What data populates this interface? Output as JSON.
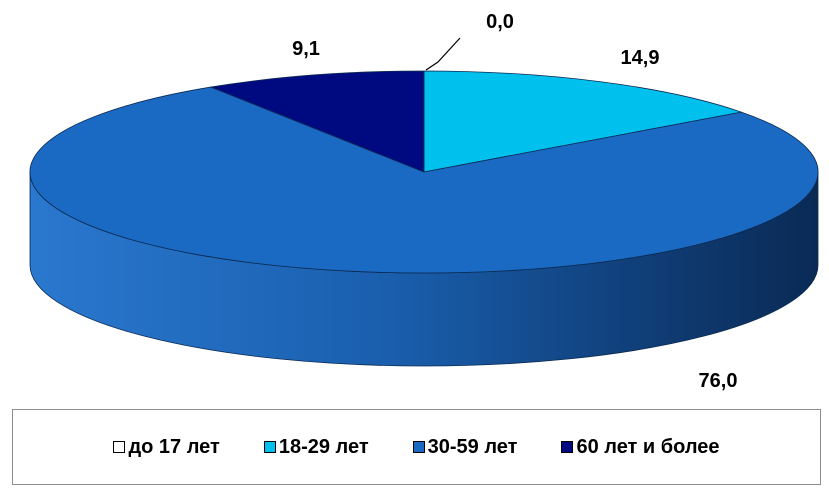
{
  "chart_data": {
    "type": "pie",
    "categories": [
      "до 17 лет",
      "18-29 лет",
      "30-59 лет",
      "60 лет и более"
    ],
    "values": [
      0.0,
      14.9,
      76.0,
      9.1
    ],
    "value_labels": [
      "0,0",
      "14,9",
      "76,0",
      "9,1"
    ],
    "colors": [
      "#ffffff",
      "#00c0ee",
      "#1a6ac4",
      "#000a80"
    ],
    "style": "3d",
    "legend_position": "bottom"
  }
}
